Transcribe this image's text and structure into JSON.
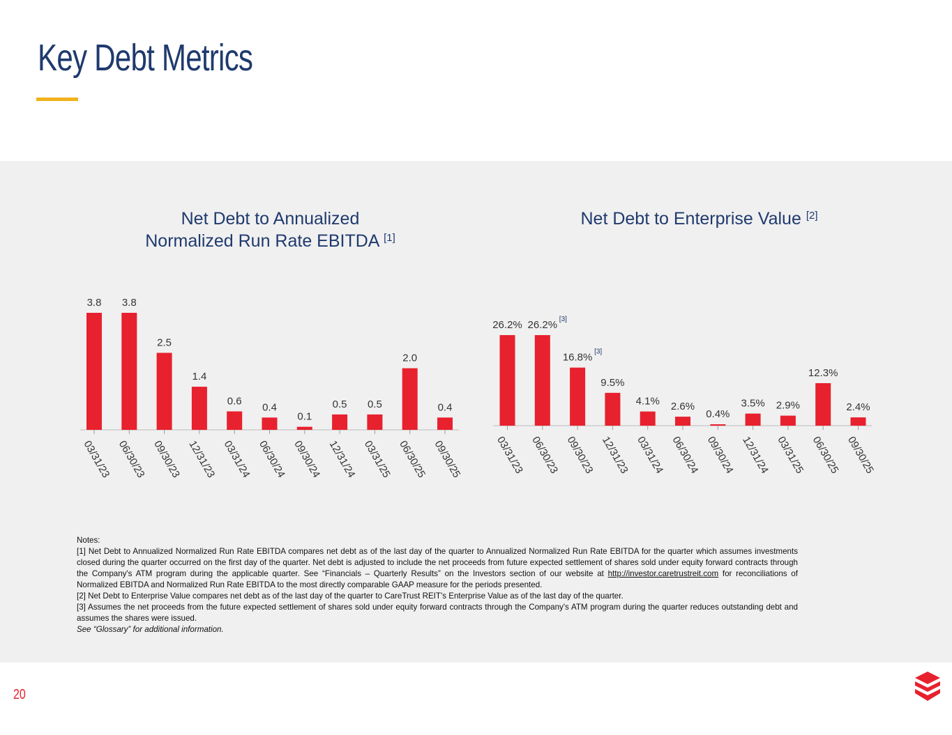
{
  "page": {
    "title": "Key Debt Metrics",
    "page_number": "20",
    "accent_color": "#f2b21c",
    "bar_color": "#e8212e",
    "title_color": "#1f3a6e"
  },
  "chart_data": [
    {
      "type": "bar",
      "title": "Net Debt to Annualized Normalized Run Rate EBITDA",
      "title_line1": "Net Debt to Annualized",
      "title_line2": "Normalized Run Rate EBITDA",
      "title_footnote": "[1]",
      "categories": [
        "03/31/23",
        "06/30/23",
        "09/30/23",
        "12/31/23",
        "03/31/24",
        "06/30/24",
        "09/30/24",
        "12/31/24",
        "03/31/25",
        "06/30/25",
        "09/30/25"
      ],
      "values": [
        3.8,
        3.8,
        2.5,
        1.4,
        0.6,
        0.4,
        0.1,
        0.5,
        0.5,
        2.0,
        0.4
      ],
      "value_labels": [
        "3.8",
        "3.8",
        "2.5",
        "1.4",
        "0.6",
        "0.4",
        "0.1",
        "0.5",
        "0.5",
        "2.0",
        "0.4"
      ],
      "bar_footnotes": [],
      "xlabel": "",
      "ylabel": "",
      "ylim": [
        0,
        3.8
      ]
    },
    {
      "type": "bar",
      "title": "Net Debt to Enterprise Value",
      "title_footnote": "[2]",
      "categories": [
        "03/31/23",
        "06/30/23",
        "09/30/23",
        "12/31/23",
        "03/31/24",
        "06/30/24",
        "09/30/24",
        "12/31/24",
        "03/31/25",
        "06/30/25",
        "09/30/25"
      ],
      "values": [
        26.2,
        26.2,
        16.8,
        9.5,
        4.1,
        2.6,
        0.4,
        3.5,
        2.9,
        12.3,
        2.4
      ],
      "value_labels": [
        "26.2%",
        "26.2%",
        "16.8%",
        "9.5%",
        "4.1%",
        "2.6%",
        "0.4%",
        "3.5%",
        "2.9%",
        "12.3%",
        "2.4%"
      ],
      "bar_footnotes": [
        {
          "index": 1,
          "text": "[3]"
        },
        {
          "index": 2,
          "text": "[3]"
        }
      ],
      "xlabel": "",
      "ylabel": "",
      "ylim": [
        0,
        26.2
      ]
    }
  ],
  "notes": {
    "heading": "Notes:",
    "note1_pre": "[1] Net Debt to Annualized Normalized Run Rate EBITDA compares net debt as of the last day of the quarter to Annualized Normalized Run Rate EBITDA for the quarter which assumes investments closed during the quarter occurred on the first day of the quarter. Net debt is adjusted to include the net proceeds from future expected settlement of shares sold under equity forward contracts through the Company's ATM program during the applicable quarter. See “Financials – Quarterly Results” on the Investors section of our website at",
    "note1_link": "http://investor.caretrustreit.com",
    "note1_post": "for reconciliations of Normalized EBITDA and Normalized Run Rate EBITDA to the most directly comparable GAAP measure for the periods presented.",
    "note2": "[2] Net Debt to Enterprise Value compares net debt as of the last day of the quarter to CareTrust REIT's Enterprise Value as of the last day of the quarter.",
    "note3": "[3] Assumes the net proceeds from the future expected settlement of shares sold under equity forward contracts through the Company's ATM program during the quarter reduces outstanding debt and assumes the shares were issued.",
    "glossary": "See “Glossary” for additional information."
  }
}
